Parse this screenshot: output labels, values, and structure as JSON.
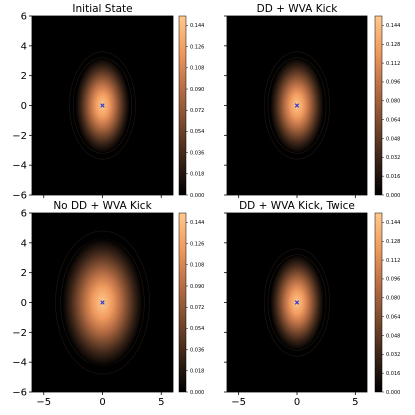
{
  "chart_data": [
    {
      "type": "heatmap",
      "title": "Initial State",
      "xlim": [
        -6,
        6
      ],
      "ylim": [
        -6,
        6
      ],
      "yticks": [
        "6",
        "4",
        "2",
        "0",
        "−2",
        "−4",
        "−6"
      ],
      "xticks": [],
      "center": [
        0,
        0
      ],
      "sigma_x": 1.05,
      "sigma_y": 1.45,
      "ring_rx": 2.8,
      "ring_ry": 3.6,
      "marker": {
        "x": 0,
        "y": 0,
        "color": "#2a3bd6"
      },
      "colorbar": {
        "min": 0.0,
        "max": 0.152,
        "ticks": [
          "0.000",
          "0.018",
          "0.036",
          "0.054",
          "0.072",
          "0.090",
          "0.108",
          "0.126",
          "0.144"
        ]
      }
    },
    {
      "type": "heatmap",
      "title": "DD + WVA Kick",
      "xlim": [
        -6,
        6
      ],
      "ylim": [
        -6,
        6
      ],
      "yticks": [],
      "xticks": [],
      "center": [
        0,
        0
      ],
      "sigma_x": 1.05,
      "sigma_y": 1.45,
      "ring_rx": 2.8,
      "ring_ry": 3.6,
      "marker": {
        "x": 0,
        "y": 0,
        "color": "#2a3bd6"
      },
      "colorbar": {
        "min": 0.0,
        "max": 0.152,
        "ticks": [
          "0.000",
          "0.016",
          "0.032",
          "0.048",
          "0.064",
          "0.080",
          "0.096",
          "0.112",
          "0.128",
          "0.144"
        ]
      }
    },
    {
      "type": "heatmap",
      "title": "No DD + WVA Kick",
      "xlim": [
        -6,
        6
      ],
      "ylim": [
        -6,
        6
      ],
      "yticks": [
        "6",
        "4",
        "2",
        "0",
        "−2",
        "−4",
        "−6"
      ],
      "xticks": [
        "−5",
        "0",
        "5"
      ],
      "center": [
        0,
        0
      ],
      "sigma_x": 1.55,
      "sigma_y": 1.95,
      "ring_rx": 4.0,
      "ring_ry": 4.8,
      "marker": {
        "x": 0,
        "y": 0,
        "color": "#2a3bd6"
      },
      "colorbar": {
        "min": 0.0,
        "max": 0.152,
        "ticks": [
          "0.000",
          "0.018",
          "0.036",
          "0.054",
          "0.072",
          "0.090",
          "0.108",
          "0.126",
          "0.144"
        ]
      }
    },
    {
      "type": "heatmap",
      "title": "DD + WVA Kick, Twice",
      "xlim": [
        -6,
        6
      ],
      "ylim": [
        -6,
        6
      ],
      "yticks": [],
      "xticks": [
        "−5",
        "0",
        "5"
      ],
      "center": [
        0,
        0
      ],
      "sigma_x": 1.05,
      "sigma_y": 1.45,
      "ring_rx": 2.8,
      "ring_ry": 3.6,
      "marker": {
        "x": 0,
        "y": 0,
        "color": "#2a3bd6"
      },
      "colorbar": {
        "min": 0.0,
        "max": 0.152,
        "ticks": [
          "0.000",
          "0.016",
          "0.032",
          "0.048",
          "0.064",
          "0.080",
          "0.096",
          "0.112",
          "0.128",
          "0.144"
        ]
      }
    }
  ],
  "colormap": [
    "#000000",
    "#3a2418",
    "#7a4a2e",
    "#b86e45",
    "#f09a5e",
    "#ffc98e"
  ]
}
